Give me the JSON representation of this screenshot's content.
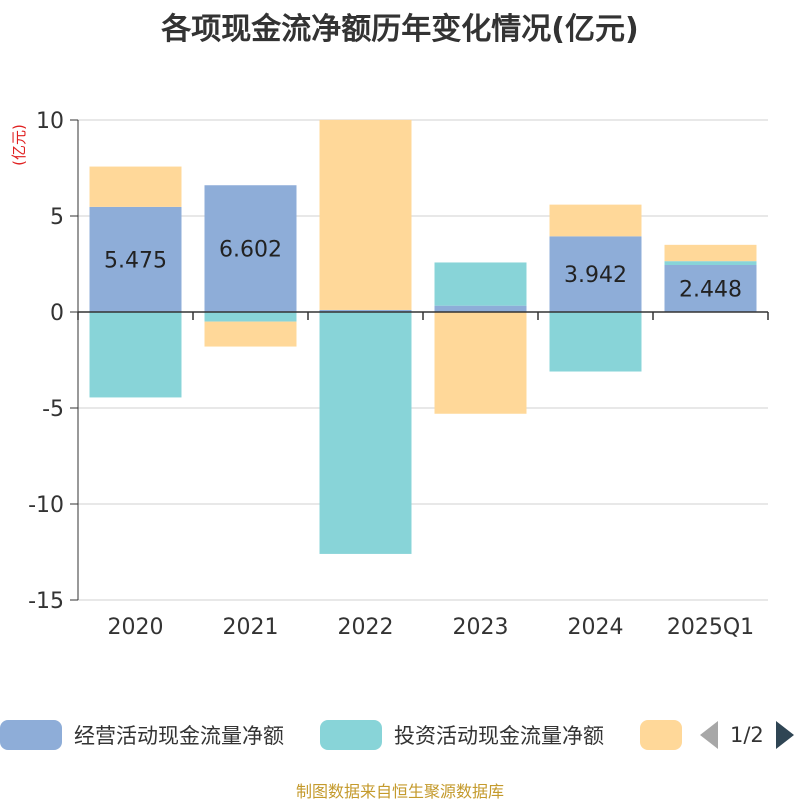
{
  "title": "各项现金流净额历年变化情况(亿元)",
  "source": "制图数据来自恒生聚源数据库",
  "legend": {
    "items": [
      {
        "label": "经营活动现金流量净额",
        "color": "#8eadd8"
      },
      {
        "label": "投资活动现金流量净额",
        "color": "#88d4d8"
      },
      {
        "label": "",
        "color": "#ffd899"
      }
    ],
    "page": "1/2"
  },
  "chart_data": {
    "type": "bar",
    "stacked": true,
    "categories": [
      "2020",
      "2021",
      "2022",
      "2023",
      "2024",
      "2025Q1"
    ],
    "ylabel": "(亿元)",
    "ylim": [
      -15,
      10
    ],
    "yticks": [
      10,
      5,
      0,
      -5,
      -10,
      -15
    ],
    "grid": true,
    "legend_position": "bottom",
    "series": [
      {
        "name": "经营活动现金流量净额",
        "color": "#8eadd8",
        "values": [
          5.475,
          6.602,
          0.107,
          0.33,
          3.942,
          2.448
        ],
        "labels": [
          "5.475",
          "6.602",
          "",
          "",
          "3.942",
          "2.448"
        ]
      },
      {
        "name": "投资活动现金流量净额",
        "color": "#88d4d8",
        "values": [
          -4.45,
          -0.5,
          -12.6,
          2.25,
          -3.1,
          0.2
        ]
      },
      {
        "name": "",
        "color": "#ffd899",
        "values": [
          2.1,
          -1.3,
          9.9,
          -5.3,
          1.65,
          0.85
        ]
      }
    ]
  }
}
